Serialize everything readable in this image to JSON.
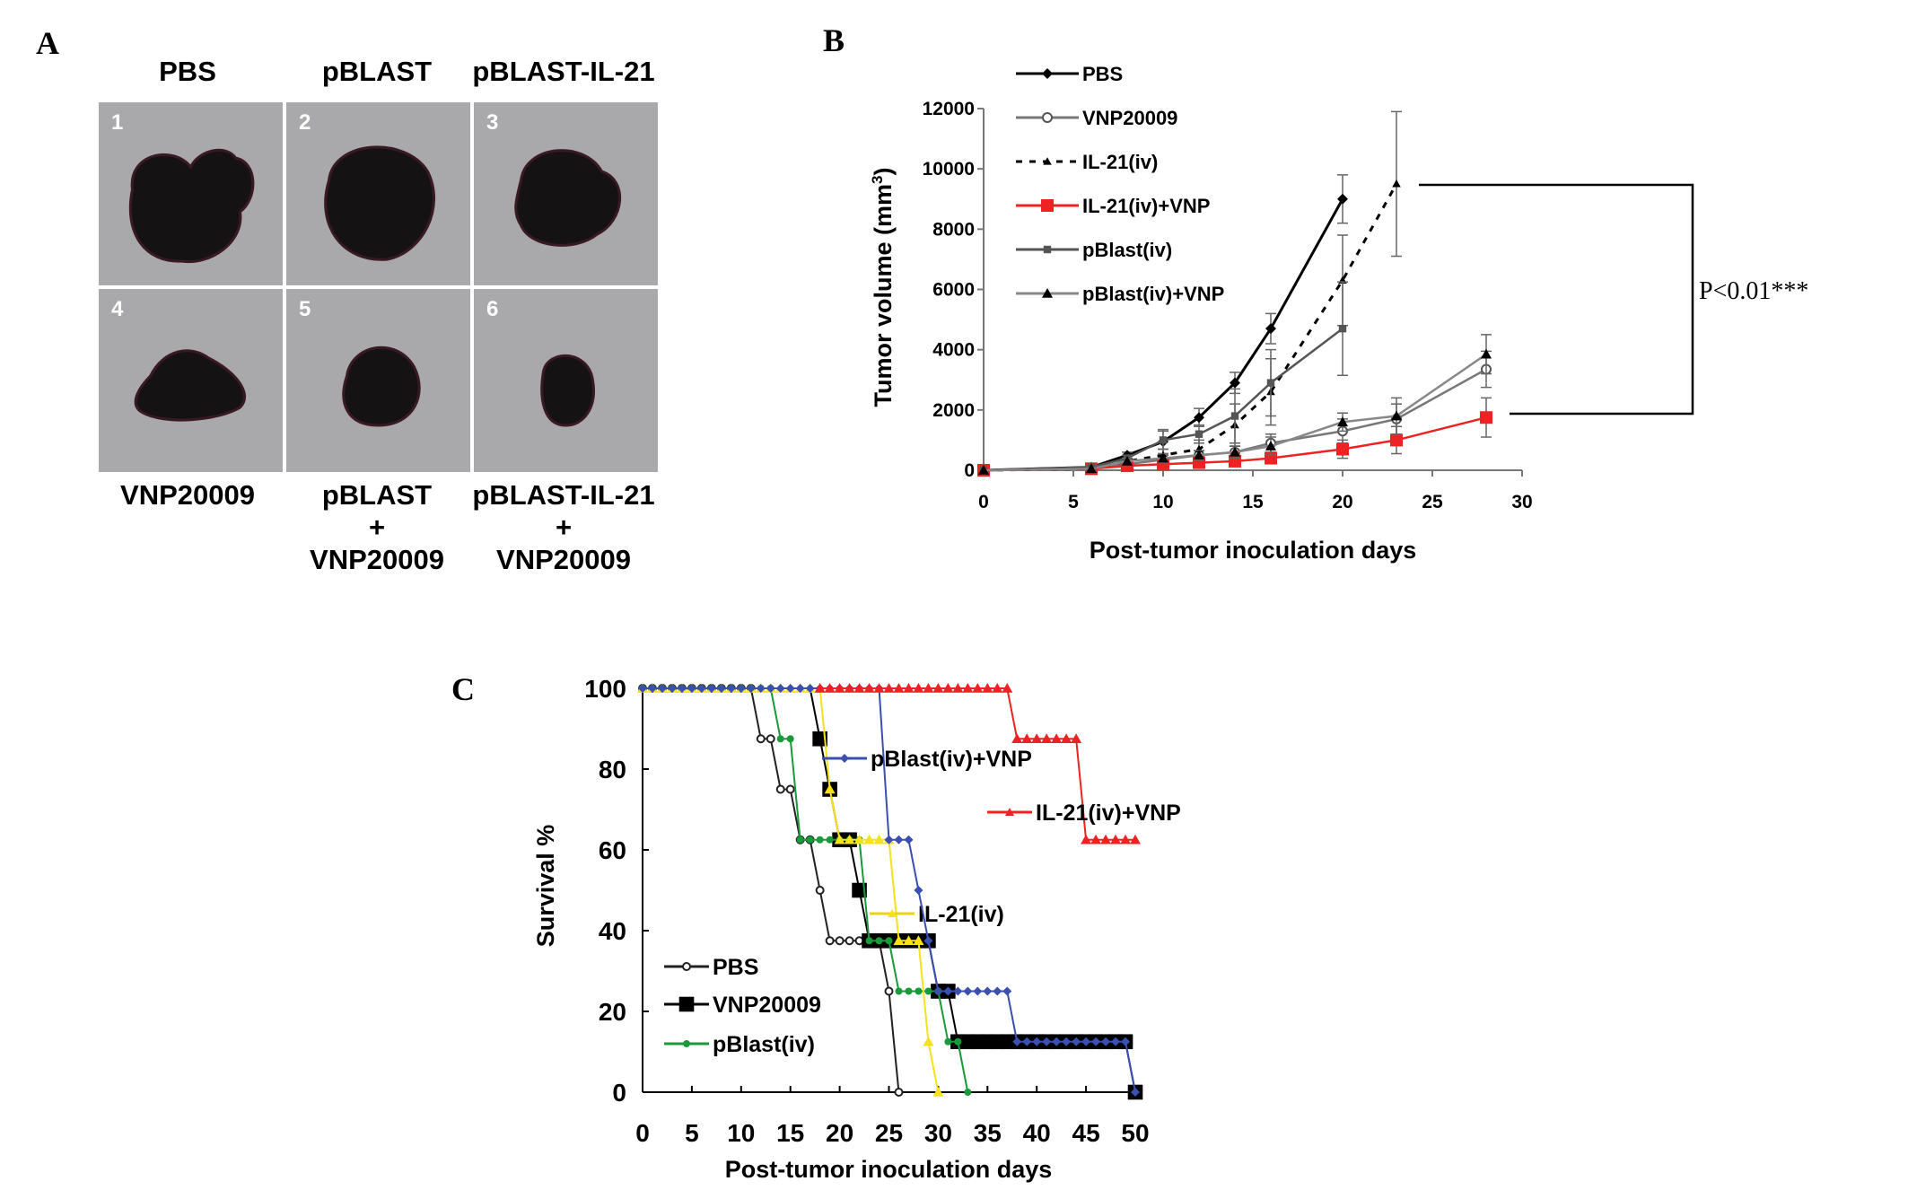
{
  "panel_a": {
    "label": "A",
    "top_labels": [
      "PBS",
      "pBLAST",
      "pBLAST-IL-21"
    ],
    "photo_numbers": [
      "1",
      "2",
      "3",
      "4",
      "5",
      "6"
    ],
    "bottom_labels": [
      {
        "line1": "VNP20009",
        "line2": "",
        "line3": ""
      },
      {
        "line1": "pBLAST",
        "line2": "+",
        "line3": "VNP20009"
      },
      {
        "line1": "pBLAST-IL-21",
        "line2": "+",
        "line3": "VNP20009"
      }
    ]
  },
  "chart_data": [
    {
      "panel": "B",
      "type": "line",
      "xlabel": "Post-tumor inoculation days",
      "ylabel": "Tumor volume (mm",
      "ylabel_sup": "3",
      "ylabel_close": ")",
      "xlim": [
        0,
        30
      ],
      "ylim": [
        0,
        12000
      ],
      "xticks": [
        "0",
        "5",
        "10",
        "15",
        "20",
        "25",
        "30"
      ],
      "yticks": [
        "0",
        "2000",
        "4000",
        "6000",
        "8000",
        "10000",
        "12000"
      ],
      "annotation": "P<0.01***",
      "legend_position": "top-left",
      "series": [
        {
          "name": "PBS",
          "color": "#000000",
          "marker": "diamond",
          "dash": false,
          "x": [
            0,
            6,
            8,
            10,
            12,
            14,
            16,
            20
          ],
          "y": [
            0,
            100,
            500,
            950,
            1750,
            2900,
            4700,
            9000
          ],
          "err": [
            0,
            50,
            100,
            400,
            300,
            350,
            500,
            800
          ]
        },
        {
          "name": "VNP20009",
          "color": "#777777",
          "marker": "circle-open",
          "dash": false,
          "x": [
            0,
            6,
            8,
            10,
            12,
            14,
            16,
            20,
            23,
            28
          ],
          "y": [
            0,
            50,
            200,
            350,
            500,
            600,
            900,
            1300,
            1700,
            3350
          ],
          "err": [
            0,
            50,
            100,
            150,
            150,
            200,
            300,
            400,
            500,
            600
          ]
        },
        {
          "name": "IL-21(iv)",
          "color": "#000000",
          "marker": "triangle-small",
          "dash": true,
          "x": [
            0,
            6,
            8,
            10,
            12,
            14,
            16,
            20,
            23
          ],
          "y": [
            0,
            50,
            300,
            500,
            700,
            1500,
            2600,
            6300,
            9500
          ],
          "err": [
            0,
            50,
            100,
            200,
            300,
            700,
            1100,
            1500,
            2400
          ]
        },
        {
          "name": "IL-21(iv)+VNP",
          "color": "#ee2222",
          "marker": "square",
          "dash": false,
          "x": [
            0,
            6,
            8,
            10,
            12,
            14,
            16,
            20,
            23,
            28
          ],
          "y": [
            0,
            50,
            150,
            200,
            250,
            300,
            400,
            700,
            1000,
            1750
          ],
          "err": [
            0,
            50,
            50,
            80,
            100,
            100,
            150,
            300,
            450,
            650
          ]
        },
        {
          "name": "pBlast(iv)",
          "color": "#555555",
          "marker": "square-small",
          "dash": false,
          "x": [
            0,
            6,
            8,
            10,
            12,
            14,
            16,
            20
          ],
          "y": [
            0,
            100,
            400,
            1000,
            1200,
            1800,
            2900,
            4700
          ],
          "err": [
            0,
            50,
            100,
            300,
            300,
            900,
            1100,
            1550
          ]
        },
        {
          "name": "pBlast(iv)+VNP",
          "color": "#888888",
          "marker": "triangle",
          "dash": false,
          "x": [
            0,
            6,
            8,
            10,
            12,
            14,
            16,
            20,
            23,
            28
          ],
          "y": [
            0,
            50,
            300,
            400,
            500,
            600,
            800,
            1600,
            1800,
            3850
          ],
          "err": [
            0,
            50,
            100,
            150,
            150,
            200,
            300,
            300,
            600,
            650
          ]
        }
      ]
    },
    {
      "panel": "C",
      "type": "line",
      "xlabel": "Post-tumor inoculation days",
      "ylabel": "Survival %",
      "xlim": [
        0,
        50
      ],
      "ylim": [
        0,
        100
      ],
      "xticks": [
        "0",
        "5",
        "10",
        "15",
        "20",
        "25",
        "30",
        "35",
        "40",
        "45",
        "50"
      ],
      "yticks": [
        "0",
        "20",
        "40",
        "60",
        "80",
        "100"
      ],
      "series": [
        {
          "name": "PBS",
          "color": "#222222",
          "marker": "circle-open",
          "segments": [
            [
              0,
              11,
              100
            ],
            [
              12,
              13,
              87.5
            ],
            [
              14,
              15,
              75
            ],
            [
              16,
              17,
              62.5
            ],
            [
              18,
              18,
              50
            ],
            [
              19,
              24,
              37.5
            ],
            [
              25,
              25,
              25
            ],
            [
              26,
              26,
              0
            ]
          ]
        },
        {
          "name": "VNP20009",
          "color": "#000000",
          "marker": "square-big",
          "segments": [
            [
              0,
              17,
              100
            ],
            [
              18,
              18,
              87.5
            ],
            [
              19,
              19,
              75
            ],
            [
              20,
              21,
              62.5
            ],
            [
              22,
              22,
              50
            ],
            [
              23,
              29,
              37.5
            ],
            [
              30,
              31,
              25
            ],
            [
              32,
              49,
              12.5
            ],
            [
              50,
              50,
              0
            ]
          ]
        },
        {
          "name": "pBlast(iv)",
          "color": "#1a9a3a",
          "marker": "circle",
          "segments": [
            [
              0,
              13,
              100
            ],
            [
              14,
              15,
              87.5
            ],
            [
              16,
              22,
              62.5
            ],
            [
              23,
              25,
              37.5
            ],
            [
              26,
              30,
              25
            ],
            [
              31,
              32,
              12.5
            ],
            [
              33,
              33,
              0
            ]
          ]
        },
        {
          "name": "IL-21(iv)",
          "color": "#f5e21a",
          "marker": "triangle",
          "segments": [
            [
              0,
              18,
              100
            ],
            [
              19,
              19,
              75
            ],
            [
              20,
              25,
              62.5
            ],
            [
              26,
              28,
              37.5
            ],
            [
              29,
              29,
              12.5
            ],
            [
              30,
              30,
              0
            ]
          ]
        },
        {
          "name": "pBlast(iv)+VNP",
          "color": "#3a4fb0",
          "marker": "diamond",
          "segments": [
            [
              0,
              24,
              100
            ],
            [
              25,
              27,
              62.5
            ],
            [
              28,
              28,
              50
            ],
            [
              29,
              29,
              37.5
            ],
            [
              30,
              37,
              25
            ],
            [
              38,
              49,
              12.5
            ],
            [
              50,
              50,
              0
            ]
          ]
        },
        {
          "name": "IL-21(iv)+VNP",
          "color": "#ee2222",
          "marker": "triangle",
          "segments": [
            [
              18,
              37,
              100
            ],
            [
              38,
              44,
              87.5
            ],
            [
              45,
              50,
              62.5
            ]
          ]
        }
      ]
    }
  ],
  "panel_b": {
    "label": "B"
  },
  "panel_c": {
    "label": "C"
  }
}
